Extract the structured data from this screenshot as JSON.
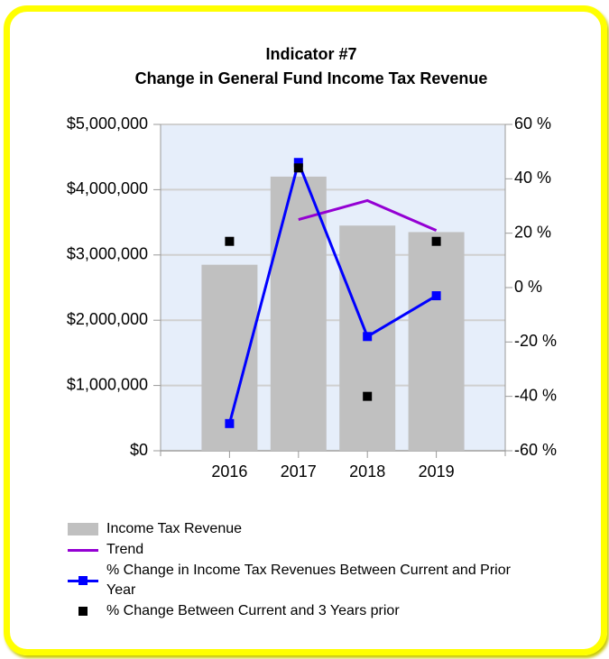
{
  "chart_data": {
    "type": "bar",
    "title": "Indicator #7",
    "subtitle": "Change in General Fund Income Tax Revenue",
    "categories": [
      "2016",
      "2017",
      "2018",
      "2019"
    ],
    "series": [
      {
        "name": "Income Tax Revenue",
        "type": "bar",
        "color": "#c0c0c0",
        "values": [
          2850000,
          4200000,
          3450000,
          3350000
        ]
      },
      {
        "name": "Trend",
        "type": "line",
        "color": "#9400d3",
        "axis": "y2",
        "values": [
          null,
          25,
          32,
          21
        ]
      },
      {
        "name": "% Change in Income Tax Revenues Between Current and Prior Year",
        "type": "line",
        "marker": true,
        "color": "#0000ff",
        "axis": "y2",
        "values": [
          -50,
          46,
          -18,
          -3
        ]
      },
      {
        "name": "% Change Between Current and 3 Years prior",
        "type": "scatter",
        "color": "#000000",
        "axis": "y2",
        "values": [
          17,
          44,
          -40,
          17
        ]
      }
    ],
    "ylim": [
      0,
      5000000
    ],
    "yticks": [
      {
        "value": 0,
        "label": "$0"
      },
      {
        "value": 1000000,
        "label": "$1,000,000"
      },
      {
        "value": 2000000,
        "label": "$2,000,000"
      },
      {
        "value": 3000000,
        "label": "$3,000,000"
      },
      {
        "value": 4000000,
        "label": "$4,000,000"
      },
      {
        "value": 5000000,
        "label": "$5,000,000"
      }
    ],
    "y2lim": [
      -60,
      60
    ],
    "y2ticks": [
      {
        "value": -60,
        "label": "-60 %"
      },
      {
        "value": -40,
        "label": "-40 %"
      },
      {
        "value": -20,
        "label": "-20 %"
      },
      {
        "value": 0,
        "label": "0 %"
      },
      {
        "value": 20,
        "label": "20 %"
      },
      {
        "value": 40,
        "label": "40 %"
      },
      {
        "value": 60,
        "label": "60 %"
      }
    ],
    "grid": true,
    "legend": "bottom"
  }
}
